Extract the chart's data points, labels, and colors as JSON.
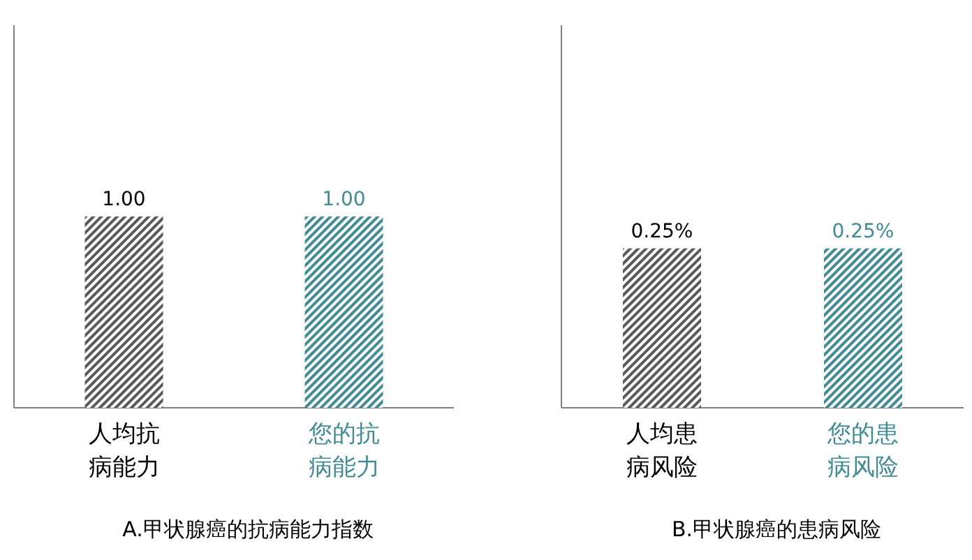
{
  "chart_data": [
    {
      "type": "bar",
      "title": "A.甲状腺癌的抗病能力指数",
      "categories": [
        "人均抗病能力",
        "您的抗病能力"
      ],
      "values": [
        1.0,
        1.0
      ],
      "colors": [
        "#595959",
        "#3f8c96"
      ],
      "value_labels": [
        "1.00",
        "1.00"
      ],
      "ylim": [
        0,
        2
      ],
      "tick_labels": "x"
    },
    {
      "type": "bar",
      "title": "B.甲状腺癌的患病风险",
      "categories": [
        "人均患病风险",
        "您的患病风险"
      ],
      "values": [
        0.25,
        0.25
      ],
      "colors": [
        "#595959",
        "#3f8c96"
      ],
      "value_labels": [
        "0.25%",
        "0.25%"
      ],
      "ylim": [
        0,
        0.6
      ],
      "tick_labels": "x"
    }
  ]
}
